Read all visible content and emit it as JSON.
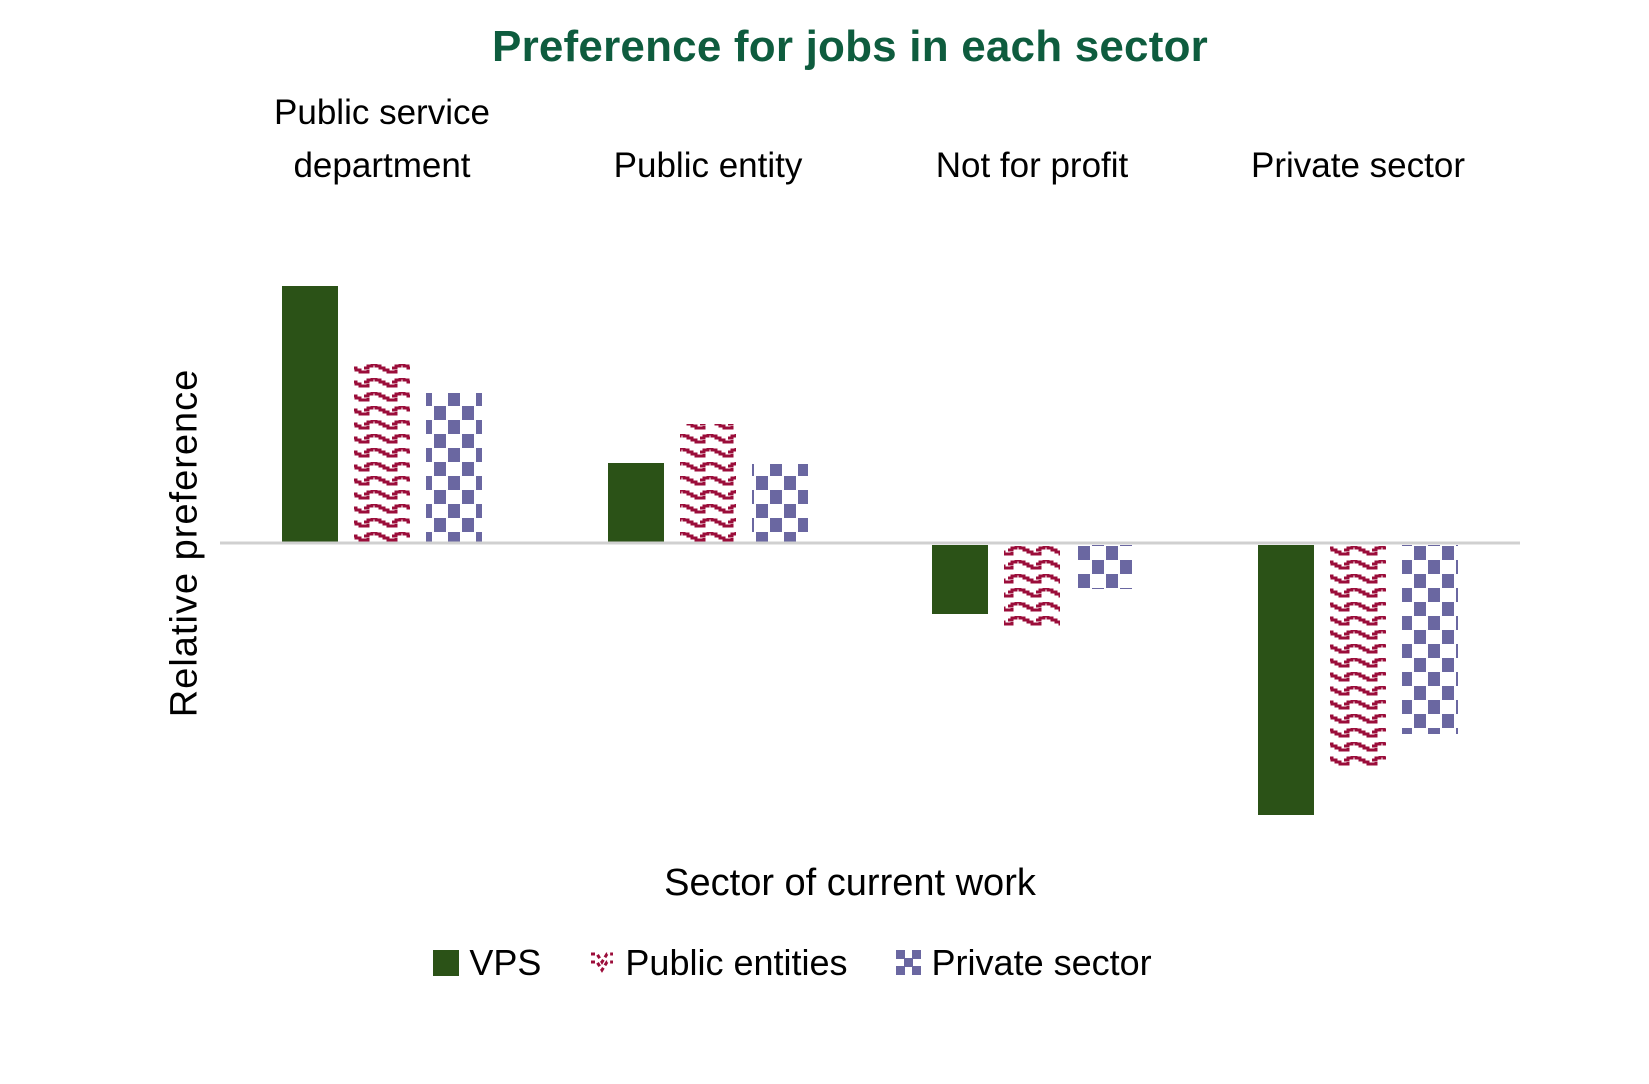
{
  "chart_data": {
    "type": "bar",
    "title": "Preference for jobs in each sector",
    "xlabel": "Sector of current work",
    "ylabel": "Relative preference",
    "categories": [
      "Public service department",
      "Public entity",
      "Not for profit",
      "Private sector"
    ],
    "category_label_lines": [
      [
        "Public service",
        "department"
      ],
      [
        "Public entity"
      ],
      [
        "Not for profit"
      ],
      [
        "Private sector"
      ]
    ],
    "series": [
      {
        "name": "VPS",
        "color": "#2b5217",
        "pattern": "solid",
        "values": [
          2.57,
          0.8,
          -0.69,
          -2.7
        ]
      },
      {
        "name": "Public entities",
        "color": "#9b0d3a",
        "pattern": "zigzag",
        "values": [
          1.81,
          1.19,
          -0.81,
          -2.22
        ]
      },
      {
        "name": "Private sector",
        "color": "#6a67a1",
        "pattern": "checkerboard",
        "values": [
          1.5,
          0.79,
          -0.44,
          -1.89
        ]
      }
    ],
    "ylim": [
      -3.0,
      3.0
    ],
    "yticks": "none (relative units, no numeric axis shown)",
    "grid": false,
    "legend_position": "bottom",
    "category_labels_position": "top"
  },
  "colors": {
    "title": "#0e5c3e",
    "axis_line": "#d0d0d0"
  }
}
